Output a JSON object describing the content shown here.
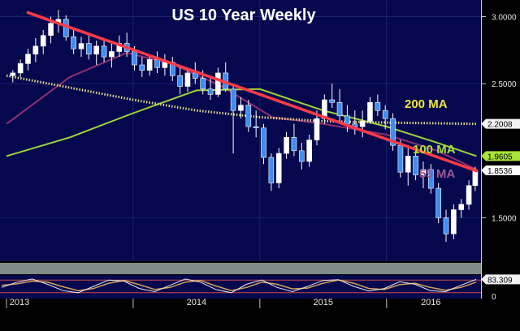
{
  "chart_data": {
    "type": "candlestick",
    "title": "US 10 Year Weekly",
    "y_range": [
      1.2,
      3.1
    ],
    "y_ticks": [
      {
        "value": 3.0,
        "label": "3.0000"
      },
      {
        "value": 2.5,
        "label": "2.5000"
      },
      {
        "value": 1.5,
        "label": "1.5000"
      }
    ],
    "x_range": [
      2013.0,
      2016.72
    ],
    "x_ticks": [
      {
        "value": 2013.0,
        "label": "2013"
      },
      {
        "value": 2014.0,
        "label": "2014"
      },
      {
        "value": 2015.0,
        "label": "2015"
      },
      {
        "value": 2016.0,
        "label": "2016"
      }
    ],
    "candles": [
      {
        "t": 2013.05,
        "o": 2.56,
        "h": 2.6,
        "l": 2.51,
        "c": 2.58
      },
      {
        "t": 2013.11,
        "o": 2.58,
        "h": 2.68,
        "l": 2.55,
        "c": 2.65
      },
      {
        "t": 2013.17,
        "o": 2.65,
        "h": 2.76,
        "l": 2.6,
        "c": 2.72
      },
      {
        "t": 2013.23,
        "o": 2.72,
        "h": 2.84,
        "l": 2.66,
        "c": 2.78
      },
      {
        "t": 2013.29,
        "o": 2.78,
        "h": 2.9,
        "l": 2.72,
        "c": 2.86
      },
      {
        "t": 2013.35,
        "o": 2.86,
        "h": 3.0,
        "l": 2.8,
        "c": 2.95
      },
      {
        "t": 2013.41,
        "o": 2.95,
        "h": 3.05,
        "l": 2.88,
        "c": 2.98
      },
      {
        "t": 2013.47,
        "o": 2.98,
        "h": 3.01,
        "l": 2.82,
        "c": 2.85
      },
      {
        "t": 2013.53,
        "o": 2.85,
        "h": 2.9,
        "l": 2.72,
        "c": 2.76
      },
      {
        "t": 2013.59,
        "o": 2.76,
        "h": 2.85,
        "l": 2.7,
        "c": 2.8
      },
      {
        "t": 2013.65,
        "o": 2.8,
        "h": 2.86,
        "l": 2.68,
        "c": 2.72
      },
      {
        "t": 2013.71,
        "o": 2.72,
        "h": 2.82,
        "l": 2.64,
        "c": 2.78
      },
      {
        "t": 2013.77,
        "o": 2.78,
        "h": 2.84,
        "l": 2.66,
        "c": 2.7
      },
      {
        "t": 2013.83,
        "o": 2.7,
        "h": 2.8,
        "l": 2.62,
        "c": 2.74
      },
      {
        "t": 2013.89,
        "o": 2.74,
        "h": 2.86,
        "l": 2.7,
        "c": 2.8
      },
      {
        "t": 2013.95,
        "o": 2.8,
        "h": 2.88,
        "l": 2.7,
        "c": 2.74
      },
      {
        "t": 2014.01,
        "o": 2.74,
        "h": 2.78,
        "l": 2.6,
        "c": 2.64
      },
      {
        "t": 2014.07,
        "o": 2.64,
        "h": 2.7,
        "l": 2.55,
        "c": 2.6
      },
      {
        "t": 2014.13,
        "o": 2.6,
        "h": 2.72,
        "l": 2.56,
        "c": 2.68
      },
      {
        "t": 2014.19,
        "o": 2.68,
        "h": 2.74,
        "l": 2.58,
        "c": 2.62
      },
      {
        "t": 2014.25,
        "o": 2.62,
        "h": 2.72,
        "l": 2.56,
        "c": 2.66
      },
      {
        "t": 2014.31,
        "o": 2.66,
        "h": 2.7,
        "l": 2.52,
        "c": 2.56
      },
      {
        "t": 2014.37,
        "o": 2.56,
        "h": 2.62,
        "l": 2.42,
        "c": 2.48
      },
      {
        "t": 2014.43,
        "o": 2.48,
        "h": 2.62,
        "l": 2.44,
        "c": 2.58
      },
      {
        "t": 2014.49,
        "o": 2.58,
        "h": 2.66,
        "l": 2.5,
        "c": 2.54
      },
      {
        "t": 2014.55,
        "o": 2.54,
        "h": 2.6,
        "l": 2.42,
        "c": 2.46
      },
      {
        "t": 2014.61,
        "o": 2.46,
        "h": 2.56,
        "l": 2.38,
        "c": 2.42
      },
      {
        "t": 2014.67,
        "o": 2.42,
        "h": 2.62,
        "l": 2.4,
        "c": 2.58
      },
      {
        "t": 2014.73,
        "o": 2.58,
        "h": 2.66,
        "l": 2.44,
        "c": 2.46
      },
      {
        "t": 2014.79,
        "o": 2.46,
        "h": 2.5,
        "l": 1.98,
        "c": 2.3
      },
      {
        "t": 2014.85,
        "o": 2.3,
        "h": 2.4,
        "l": 2.24,
        "c": 2.34
      },
      {
        "t": 2014.91,
        "o": 2.34,
        "h": 2.38,
        "l": 2.14,
        "c": 2.18
      },
      {
        "t": 2014.97,
        "o": 2.18,
        "h": 2.3,
        "l": 2.1,
        "c": 2.17
      },
      {
        "t": 2015.03,
        "o": 2.17,
        "h": 2.2,
        "l": 1.9,
        "c": 1.95
      },
      {
        "t": 2015.09,
        "o": 1.95,
        "h": 1.98,
        "l": 1.7,
        "c": 1.76
      },
      {
        "t": 2015.15,
        "o": 1.76,
        "h": 2.02,
        "l": 1.72,
        "c": 1.98
      },
      {
        "t": 2015.21,
        "o": 1.98,
        "h": 2.14,
        "l": 1.94,
        "c": 2.1
      },
      {
        "t": 2015.27,
        "o": 2.1,
        "h": 2.2,
        "l": 1.96,
        "c": 2.0
      },
      {
        "t": 2015.33,
        "o": 2.0,
        "h": 2.06,
        "l": 1.86,
        "c": 1.92
      },
      {
        "t": 2015.39,
        "o": 1.92,
        "h": 2.12,
        "l": 1.88,
        "c": 2.08
      },
      {
        "t": 2015.45,
        "o": 2.08,
        "h": 2.3,
        "l": 2.04,
        "c": 2.24
      },
      {
        "t": 2015.51,
        "o": 2.24,
        "h": 2.42,
        "l": 2.2,
        "c": 2.38
      },
      {
        "t": 2015.57,
        "o": 2.38,
        "h": 2.5,
        "l": 2.32,
        "c": 2.36
      },
      {
        "t": 2015.63,
        "o": 2.36,
        "h": 2.46,
        "l": 2.2,
        "c": 2.26
      },
      {
        "t": 2015.69,
        "o": 2.26,
        "h": 2.34,
        "l": 2.14,
        "c": 2.2
      },
      {
        "t": 2015.75,
        "o": 2.2,
        "h": 2.3,
        "l": 2.12,
        "c": 2.18
      },
      {
        "t": 2015.81,
        "o": 2.18,
        "h": 2.3,
        "l": 2.1,
        "c": 2.22
      },
      {
        "t": 2015.87,
        "o": 2.22,
        "h": 2.4,
        "l": 2.2,
        "c": 2.36
      },
      {
        "t": 2015.93,
        "o": 2.36,
        "h": 2.42,
        "l": 2.26,
        "c": 2.3
      },
      {
        "t": 2015.99,
        "o": 2.3,
        "h": 2.34,
        "l": 2.16,
        "c": 2.24
      },
      {
        "t": 2016.05,
        "o": 2.24,
        "h": 2.28,
        "l": 2.0,
        "c": 2.04
      },
      {
        "t": 2016.11,
        "o": 2.04,
        "h": 2.08,
        "l": 1.8,
        "c": 1.84
      },
      {
        "t": 2016.17,
        "o": 1.84,
        "h": 2.02,
        "l": 1.74,
        "c": 1.96
      },
      {
        "t": 2016.23,
        "o": 1.96,
        "h": 2.0,
        "l": 1.78,
        "c": 1.82
      },
      {
        "t": 2016.29,
        "o": 1.82,
        "h": 1.92,
        "l": 1.72,
        "c": 1.86
      },
      {
        "t": 2016.35,
        "o": 1.86,
        "h": 1.9,
        "l": 1.68,
        "c": 1.72
      },
      {
        "t": 2016.41,
        "o": 1.72,
        "h": 1.76,
        "l": 1.46,
        "c": 1.5
      },
      {
        "t": 2016.47,
        "o": 1.5,
        "h": 1.56,
        "l": 1.32,
        "c": 1.38
      },
      {
        "t": 2016.53,
        "o": 1.38,
        "h": 1.6,
        "l": 1.34,
        "c": 1.56
      },
      {
        "t": 2016.59,
        "o": 1.56,
        "h": 1.64,
        "l": 1.5,
        "c": 1.6
      },
      {
        "t": 2016.65,
        "o": 1.6,
        "h": 1.78,
        "l": 1.56,
        "c": 1.74
      },
      {
        "t": 2016.7,
        "o": 1.74,
        "h": 1.88,
        "l": 1.7,
        "c": 1.85
      }
    ],
    "trendline": {
      "color": "#ff3b46",
      "points": [
        [
          2013.17,
          3.03
        ],
        [
          2016.71,
          1.85
        ]
      ]
    },
    "moving_averages": [
      {
        "name": "200 MA",
        "label": "200 MA",
        "color": "#e6d98a",
        "label_color": "#f2e63c",
        "dotted": true,
        "value_label": "2.2008",
        "points": [
          [
            2013.0,
            2.56
          ],
          [
            2013.5,
            2.47
          ],
          [
            2014.0,
            2.38
          ],
          [
            2014.5,
            2.3
          ],
          [
            2015.0,
            2.25
          ],
          [
            2015.5,
            2.22
          ],
          [
            2016.0,
            2.21
          ],
          [
            2016.71,
            2.2
          ]
        ]
      },
      {
        "name": "100 MA",
        "label": "100 MA",
        "color": "#9ed43a",
        "label_color": "#a8e23a",
        "dotted": false,
        "value_label": "1.9605",
        "points": [
          [
            2013.0,
            1.96
          ],
          [
            2013.5,
            2.1
          ],
          [
            2014.0,
            2.28
          ],
          [
            2014.5,
            2.45
          ],
          [
            2015.0,
            2.46
          ],
          [
            2015.5,
            2.3
          ],
          [
            2016.0,
            2.18
          ],
          [
            2016.4,
            2.06
          ],
          [
            2016.71,
            1.96
          ]
        ]
      },
      {
        "name": "55 MA",
        "label": "55 MA",
        "color": "#8f2f6e",
        "label_color": "#a05a96",
        "dotted": false,
        "value_label": "1.8536",
        "points": [
          [
            2013.0,
            2.2
          ],
          [
            2013.5,
            2.55
          ],
          [
            2013.95,
            2.73
          ],
          [
            2014.3,
            2.65
          ],
          [
            2014.7,
            2.48
          ],
          [
            2015.1,
            2.25
          ],
          [
            2015.5,
            2.2
          ],
          [
            2016.0,
            2.12
          ],
          [
            2016.4,
            2.0
          ],
          [
            2016.71,
            1.86
          ]
        ]
      }
    ],
    "stochastic": {
      "value_label": "83.309",
      "y_tick": "0",
      "k": [
        45,
        70,
        85,
        60,
        30,
        20,
        50,
        80,
        75,
        40,
        25,
        55,
        85,
        70,
        35,
        20,
        60,
        80,
        45,
        25,
        50,
        78,
        82,
        50,
        28,
        40,
        72,
        60,
        30,
        25,
        55,
        83
      ],
      "d": [
        55,
        62,
        75,
        70,
        48,
        30,
        40,
        65,
        78,
        58,
        35,
        45,
        70,
        78,
        52,
        30,
        45,
        70,
        60,
        38,
        42,
        65,
        80,
        65,
        40,
        35,
        58,
        65,
        45,
        32,
        45,
        70
      ]
    }
  }
}
